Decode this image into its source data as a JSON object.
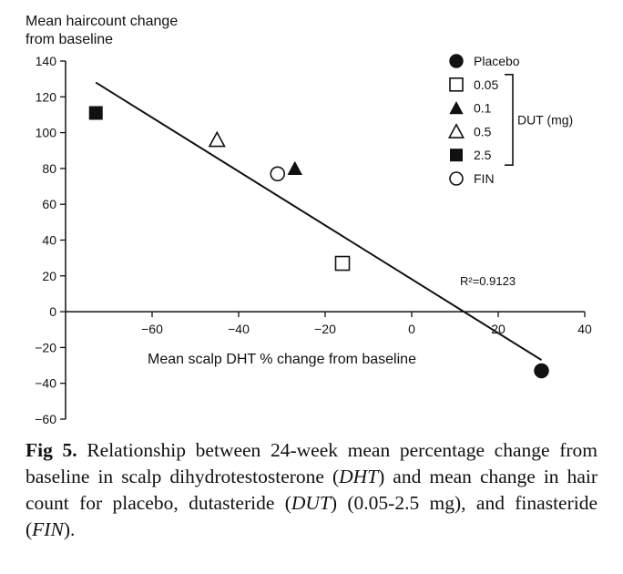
{
  "chart_data": {
    "type": "scatter",
    "title": "",
    "ylabel_line1": "Mean haircount change",
    "ylabel_line2": "from baseline",
    "xlabel": "Mean scalp DHT % change from baseline",
    "xlim": [
      -80,
      40
    ],
    "ylim": [
      -60,
      140
    ],
    "x_ticks": [
      -60,
      -40,
      -20,
      0,
      20,
      40
    ],
    "x_tick_labels": [
      "−60",
      "−40",
      "−20",
      "0",
      "20",
      "40"
    ],
    "y_ticks": [
      -60,
      -40,
      -20,
      0,
      20,
      40,
      60,
      80,
      100,
      120,
      140
    ],
    "y_tick_labels": [
      "−60",
      "−40",
      "−20",
      "0",
      "20",
      "40",
      "60",
      "80",
      "100",
      "120",
      "140"
    ],
    "grid": false,
    "legend_position": "top-right",
    "legend_group_label": "DUT (mg)",
    "series": [
      {
        "name": "Placebo",
        "marker": "circle-filled",
        "x": 30,
        "y": -33
      },
      {
        "name": "0.05",
        "marker": "square-open",
        "x": -16,
        "y": 27
      },
      {
        "name": "0.1",
        "marker": "triangle-filled",
        "x": -27,
        "y": 80
      },
      {
        "name": "0.5",
        "marker": "triangle-open",
        "x": -45,
        "y": 96
      },
      {
        "name": "2.5",
        "marker": "square-filled",
        "x": -73,
        "y": 111
      },
      {
        "name": "FIN",
        "marker": "circle-open",
        "x": -31,
        "y": 77
      }
    ],
    "trendline": {
      "x": [
        -73,
        30
      ],
      "y": [
        128,
        -27
      ]
    },
    "r2_label": "R²=0.9123"
  },
  "caption": {
    "label": "Fig 5.",
    "part1": " Relationship between 24-week mean percentage change from baseline in scalp dihydrotestosterone (",
    "dht": "DHT",
    "part2": ") and mean change in hair count for placebo, dutasteride (",
    "dut": "DUT",
    "part3": ") (0.05-2.5 mg), and finasteride (",
    "fin": "FIN",
    "part4": ")."
  }
}
